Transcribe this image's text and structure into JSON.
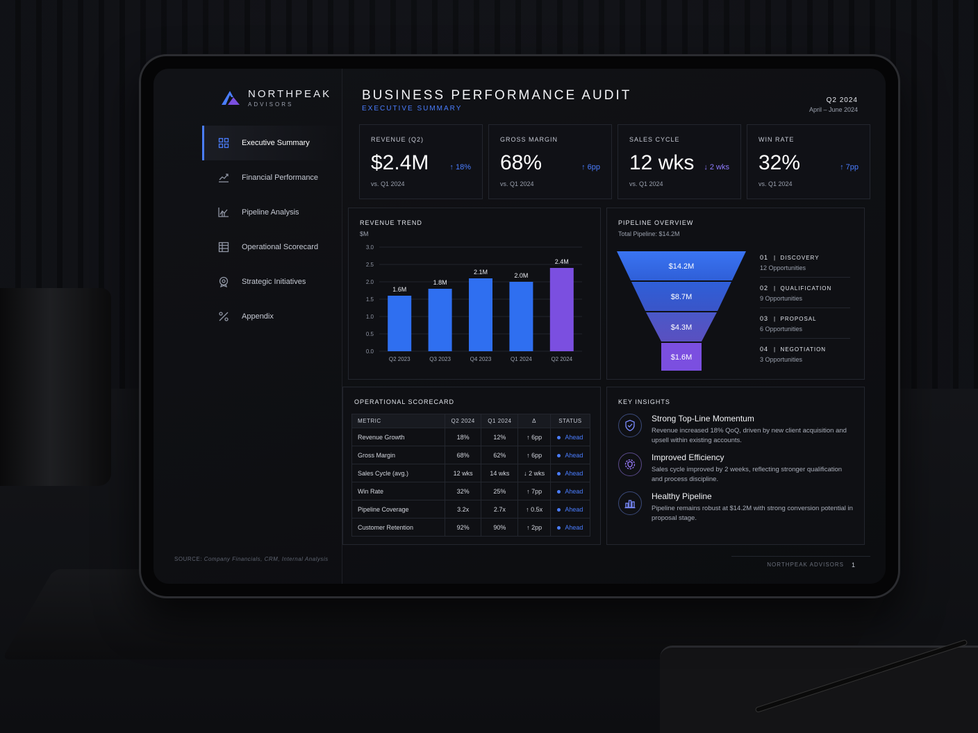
{
  "brand": {
    "name": "NORTHPEAK",
    "sub": "ADVISORS"
  },
  "sidebar": {
    "items": [
      {
        "label": "Executive Summary",
        "icon": "grid-icon",
        "active": true
      },
      {
        "label": "Financial Performance",
        "icon": "line-chart-icon"
      },
      {
        "label": "Pipeline Analysis",
        "icon": "area-chart-icon"
      },
      {
        "label": "Operational Scorecard",
        "icon": "table-icon"
      },
      {
        "label": "Strategic Initiatives",
        "icon": "target-icon"
      },
      {
        "label": "Appendix",
        "icon": "percent-icon"
      }
    ],
    "source_label": "SOURCE:",
    "source_text": "Company Financials, CRM, Internal Analysis"
  },
  "header": {
    "title": "BUSINESS PERFORMANCE AUDIT",
    "subtitle": "EXECUTIVE SUMMARY",
    "quarter": "Q2 2024",
    "dates": "April – June 2024"
  },
  "kpis": [
    {
      "label": "REVENUE (Q2)",
      "value": "$2.4M",
      "delta": "18%",
      "direction": "up",
      "foot": "vs. Q1 2024"
    },
    {
      "label": "GROSS MARGIN",
      "value": "68%",
      "delta": "6pp",
      "direction": "up",
      "foot": "vs. Q1 2024"
    },
    {
      "label": "SALES CYCLE",
      "value": "12 wks",
      "delta": "2 wks",
      "direction": "down",
      "foot": "vs. Q1 2024"
    },
    {
      "label": "WIN RATE",
      "value": "32%",
      "delta": "7pp",
      "direction": "up",
      "foot": "vs. Q1 2024"
    }
  ],
  "revenue_trend": {
    "title": "REVENUE TREND",
    "unit": "$M"
  },
  "chart_data": {
    "type": "bar",
    "title": "REVENUE TREND",
    "ylabel": "$M",
    "categories": [
      "Q2 2023",
      "Q3 2023",
      "Q4 2023",
      "Q1 2024",
      "Q2 2024"
    ],
    "values": [
      1.6,
      1.8,
      2.1,
      2.0,
      2.4
    ],
    "data_labels": [
      "1.6M",
      "1.8M",
      "2.1M",
      "2.0M",
      "2.4M"
    ],
    "yticks": [
      "3.0",
      "2.5",
      "2.0",
      "1.5",
      "1.0",
      "0.5",
      "0.0"
    ],
    "ylim": [
      0,
      3.0
    ],
    "grid": true,
    "colors": [
      "#2f6ff0",
      "#2f6ff0",
      "#2f6ff0",
      "#2f6ff0",
      "#7b4fe0"
    ]
  },
  "pipeline": {
    "title": "PIPELINE OVERVIEW",
    "total": "Total Pipeline: $14.2M",
    "funnel": [
      "$14.2M",
      "$8.7M",
      "$4.3M",
      "$1.6M"
    ],
    "stages": [
      {
        "num": "01",
        "name": "DISCOVERY",
        "count": "12 Opportunities"
      },
      {
        "num": "02",
        "name": "QUALIFICATION",
        "count": "9 Opportunities"
      },
      {
        "num": "03",
        "name": "PROPOSAL",
        "count": "6 Opportunities"
      },
      {
        "num": "04",
        "name": "NEGOTIATION",
        "count": "3 Opportunities"
      }
    ]
  },
  "scorecard": {
    "title": "OPERATIONAL SCORECARD",
    "headers": [
      "METRIC",
      "Q2 2024",
      "Q1 2024",
      "Δ",
      "STATUS"
    ],
    "rows": [
      {
        "metric": "Revenue Growth",
        "q2": "18%",
        "q1": "12%",
        "delta": "↑ 6pp",
        "status": "Ahead"
      },
      {
        "metric": "Gross Margin",
        "q2": "68%",
        "q1": "62%",
        "delta": "↑ 6pp",
        "status": "Ahead"
      },
      {
        "metric": "Sales Cycle (avg.)",
        "q2": "12 wks",
        "q1": "14 wks",
        "delta": "↓ 2 wks",
        "status": "Ahead"
      },
      {
        "metric": "Win Rate",
        "q2": "32%",
        "q1": "25%",
        "delta": "↑ 7pp",
        "status": "Ahead"
      },
      {
        "metric": "Pipeline Coverage",
        "q2": "3.2x",
        "q1": "2.7x",
        "delta": "↑ 0.5x",
        "status": "Ahead"
      },
      {
        "metric": "Customer Retention",
        "q2": "92%",
        "q1": "90%",
        "delta": "↑ 2pp",
        "status": "Ahead"
      }
    ]
  },
  "insights": {
    "title": "KEY INSIGHTS",
    "items": [
      {
        "icon": "shield-check-icon",
        "title": "Strong Top-Line Momentum",
        "body": "Revenue increased 18% QoQ, driven by new client acquisition and upsell within existing accounts."
      },
      {
        "icon": "gear-shield-icon",
        "title": "Improved Efficiency",
        "body": "Sales cycle improved by 2 weeks, reflecting stronger qualification and process discipline."
      },
      {
        "icon": "bar-chart-icon",
        "title": "Healthy Pipeline",
        "body": "Pipeline remains robust at $14.2M with strong conversion potential in proposal stage."
      }
    ]
  },
  "footer": {
    "company": "NORTHPEAK ADVISORS",
    "page": "1"
  },
  "colors": {
    "accent": "#4a7dff",
    "purple": "#7b4fe0",
    "background": "#0f1014"
  }
}
